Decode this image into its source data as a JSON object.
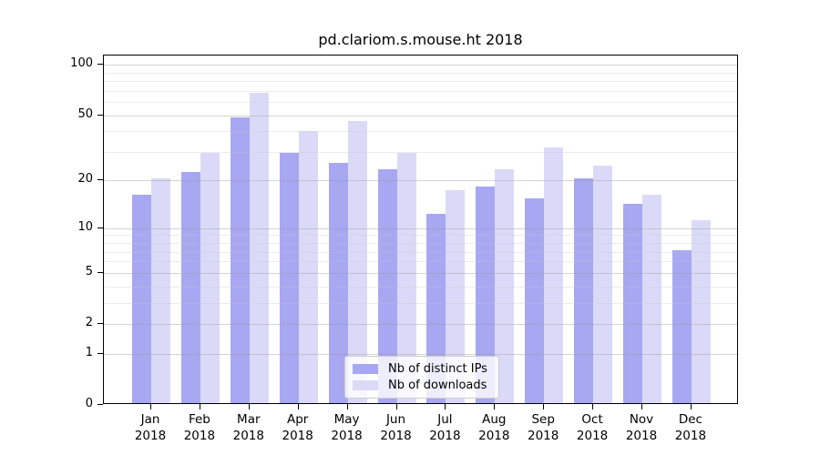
{
  "chart_data": {
    "type": "bar",
    "title": "pd.clariom.s.mouse.ht 2018",
    "categories": [
      "Jan 2018",
      "Feb 2018",
      "Mar 2018",
      "Apr 2018",
      "May 2018",
      "Jun 2018",
      "Jul 2018",
      "Aug 2018",
      "Sep 2018",
      "Oct 2018",
      "Nov 2018",
      "Dec 2018"
    ],
    "series": [
      {
        "name": "Nb of distinct IPs",
        "color": "#a7a7f2",
        "values": [
          16,
          22,
          47,
          29,
          25,
          23,
          12,
          18,
          15,
          20,
          14,
          7
        ]
      },
      {
        "name": "Nb of downloads",
        "color": "#dadaf8",
        "values": [
          20,
          29,
          66,
          39,
          45,
          29,
          17,
          23,
          31,
          24,
          16,
          11
        ]
      }
    ],
    "xlabel": "",
    "ylabel": "",
    "yscale": "log1p",
    "ylim": [
      0,
      113
    ],
    "y_major_ticks": [
      0,
      1,
      2,
      5,
      10,
      20,
      50,
      100
    ],
    "y_minor_gridlines": [
      3,
      4,
      6,
      7,
      8,
      9,
      30,
      40,
      60,
      70,
      80,
      90
    ],
    "grid": "on",
    "legend_position": "inside-bottom-center"
  }
}
